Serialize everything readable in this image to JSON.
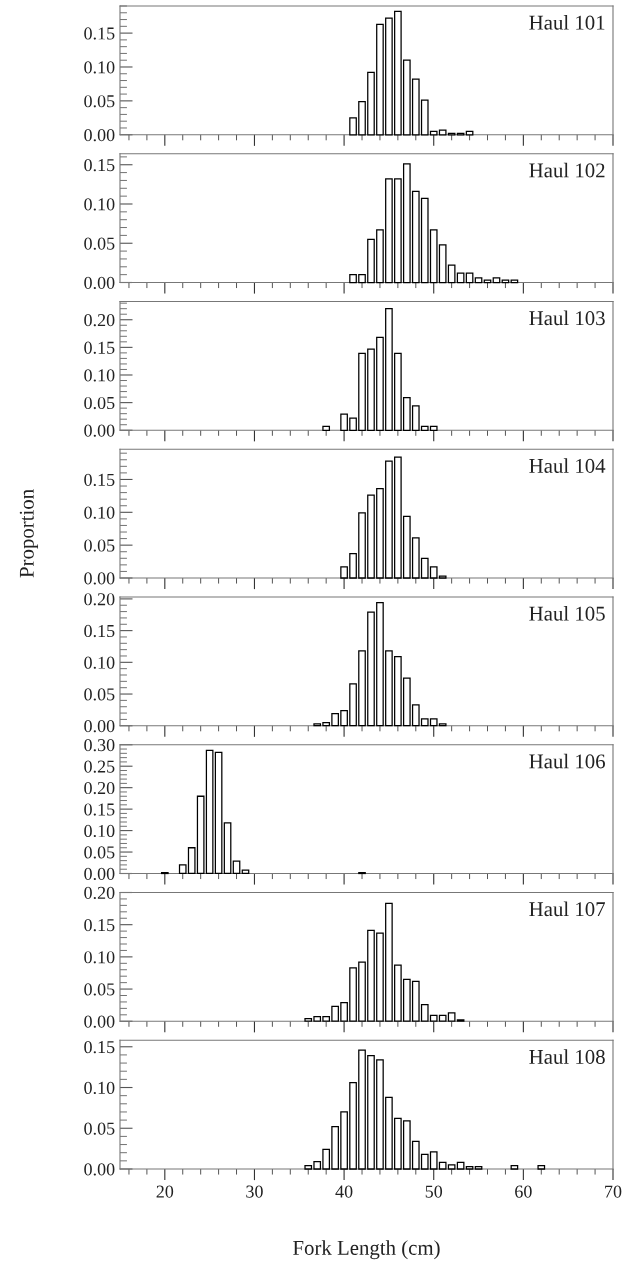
{
  "chart_data": [
    {
      "type": "bar",
      "title": "Haul 101",
      "color": "#ffffff",
      "tick_labels": "y",
      "xlim": [
        15,
        70
      ],
      "xticks": [
        20,
        30,
        40,
        50,
        60,
        70
      ],
      "ylim": [
        0,
        0.19
      ],
      "yticks": [
        {
          "value": 0,
          "label": "0.00"
        },
        {
          "value": 0.05,
          "label": "0.05"
        },
        {
          "value": 0.1,
          "label": "0.10"
        },
        {
          "value": 0.15,
          "label": "0.15"
        }
      ],
      "x": [
        41,
        42,
        43,
        44,
        45,
        46,
        47,
        48,
        49,
        50,
        51,
        52,
        53,
        54
      ],
      "values": [
        0.025,
        0.049,
        0.092,
        0.163,
        0.172,
        0.182,
        0.11,
        0.082,
        0.051,
        0.005,
        0.007,
        0.002,
        0.002,
        0.005
      ]
    },
    {
      "type": "bar",
      "title": "Haul 102",
      "color": "#ffffff",
      "tick_labels": "y",
      "xlim": [
        15,
        70
      ],
      "xticks": [
        20,
        30,
        40,
        50,
        60,
        70
      ],
      "ylim": [
        0,
        0.164
      ],
      "yticks": [
        {
          "value": 0,
          "label": "0.00"
        },
        {
          "value": 0.05,
          "label": "0.05"
        },
        {
          "value": 0.1,
          "label": "0.10"
        },
        {
          "value": 0.15,
          "label": "0.15"
        }
      ],
      "x": [
        41,
        42,
        43,
        44,
        45,
        46,
        47,
        48,
        49,
        50,
        51,
        52,
        53,
        54,
        55,
        56,
        57,
        58,
        59
      ],
      "values": [
        0.01,
        0.01,
        0.055,
        0.067,
        0.132,
        0.132,
        0.151,
        0.116,
        0.107,
        0.067,
        0.048,
        0.022,
        0.012,
        0.012,
        0.006,
        0.003,
        0.006,
        0.003,
        0.003
      ]
    },
    {
      "type": "bar",
      "title": "Haul 103",
      "color": "#ffffff",
      "tick_labels": "y",
      "xlim": [
        15,
        70
      ],
      "xticks": [
        20,
        30,
        40,
        50,
        60,
        70
      ],
      "ylim": [
        0,
        0.233
      ],
      "yticks": [
        {
          "value": 0,
          "label": "0.00"
        },
        {
          "value": 0.05,
          "label": "0.05"
        },
        {
          "value": 0.1,
          "label": "0.10"
        },
        {
          "value": 0.15,
          "label": "0.15"
        },
        {
          "value": 0.2,
          "label": "0.20"
        }
      ],
      "x": [
        38,
        40,
        41,
        42,
        43,
        44,
        45,
        46,
        47,
        48,
        49,
        50
      ],
      "values": [
        0.007,
        0.029,
        0.022,
        0.139,
        0.147,
        0.168,
        0.22,
        0.139,
        0.059,
        0.044,
        0.007,
        0.007
      ]
    },
    {
      "type": "bar",
      "title": "Haul 104",
      "color": "#ffffff",
      "tick_labels": "y",
      "ylabel": "Proportion",
      "xlim": [
        15,
        70
      ],
      "xticks": [
        20,
        30,
        40,
        50,
        60,
        70
      ],
      "ylim": [
        0,
        0.196
      ],
      "yticks": [
        {
          "value": 0,
          "label": "0.00"
        },
        {
          "value": 0.05,
          "label": "0.05"
        },
        {
          "value": 0.1,
          "label": "0.10"
        },
        {
          "value": 0.15,
          "label": "0.15"
        }
      ],
      "x": [
        40,
        41,
        42,
        43,
        44,
        45,
        46,
        47,
        48,
        49,
        50,
        51
      ],
      "values": [
        0.017,
        0.037,
        0.099,
        0.126,
        0.136,
        0.178,
        0.184,
        0.094,
        0.061,
        0.03,
        0.017,
        0.003
      ]
    },
    {
      "type": "bar",
      "title": "Haul 105",
      "color": "#ffffff",
      "tick_labels": "y",
      "xlim": [
        15,
        70
      ],
      "xticks": [
        20,
        30,
        40,
        50,
        60,
        70
      ],
      "ylim": [
        0,
        0.203
      ],
      "yticks": [
        {
          "value": 0,
          "label": "0.00"
        },
        {
          "value": 0.05,
          "label": "0.05"
        },
        {
          "value": 0.1,
          "label": "0.10"
        },
        {
          "value": 0.15,
          "label": "0.15"
        },
        {
          "value": 0.2,
          "label": "0.20"
        }
      ],
      "x": [
        37,
        38,
        39,
        40,
        41,
        42,
        43,
        44,
        45,
        46,
        47,
        48,
        49,
        50,
        51
      ],
      "values": [
        0.003,
        0.005,
        0.019,
        0.024,
        0.066,
        0.118,
        0.179,
        0.194,
        0.118,
        0.109,
        0.075,
        0.033,
        0.011,
        0.011,
        0.003
      ]
    },
    {
      "type": "bar",
      "title": "Haul 106",
      "color": "#ffffff",
      "tick_labels": "y",
      "xlim": [
        15,
        70
      ],
      "xticks": [
        20,
        30,
        40,
        50,
        60,
        70
      ],
      "ylim": [
        0,
        0.3
      ],
      "yticks": [
        {
          "value": 0,
          "label": "0.00"
        },
        {
          "value": 0.05,
          "label": "0.05"
        },
        {
          "value": 0.1,
          "label": "0.10"
        },
        {
          "value": 0.15,
          "label": "0.15"
        },
        {
          "value": 0.2,
          "label": "0.20"
        },
        {
          "value": 0.25,
          "label": "0.25"
        },
        {
          "value": 0.3,
          "label": "0.30"
        }
      ],
      "x": [
        20,
        22,
        23,
        24,
        25,
        26,
        27,
        28,
        29,
        42
      ],
      "values": [
        0.002,
        0.02,
        0.06,
        0.18,
        0.287,
        0.282,
        0.118,
        0.029,
        0.008,
        0.002
      ]
    },
    {
      "type": "bar",
      "title": "Haul 107",
      "color": "#ffffff",
      "tick_labels": "y",
      "xlim": [
        15,
        70
      ],
      "xticks": [
        20,
        30,
        40,
        50,
        60,
        70
      ],
      "ylim": [
        0,
        0.2
      ],
      "yticks": [
        {
          "value": 0,
          "label": "0.00"
        },
        {
          "value": 0.05,
          "label": "0.05"
        },
        {
          "value": 0.1,
          "label": "0.10"
        },
        {
          "value": 0.15,
          "label": "0.15"
        },
        {
          "value": 0.2,
          "label": "0.20"
        }
      ],
      "x": [
        36,
        37,
        38,
        39,
        40,
        41,
        42,
        43,
        44,
        45,
        46,
        47,
        48,
        49,
        50,
        51,
        52,
        53
      ],
      "values": [
        0.004,
        0.007,
        0.007,
        0.023,
        0.029,
        0.083,
        0.092,
        0.141,
        0.137,
        0.183,
        0.087,
        0.065,
        0.062,
        0.026,
        0.009,
        0.009,
        0.013,
        0.002
      ]
    },
    {
      "type": "bar",
      "title": "Haul 108",
      "color": "#ffffff",
      "xlabel": "Fork Length (cm)",
      "xlim": [
        15,
        70
      ],
      "xticks": [
        20,
        30,
        40,
        50,
        60,
        70
      ],
      "ylim": [
        0,
        0.158
      ],
      "yticks": [
        {
          "value": 0,
          "label": "0.00"
        },
        {
          "value": 0.05,
          "label": "0.05"
        },
        {
          "value": 0.1,
          "label": "0.10"
        },
        {
          "value": 0.15,
          "label": "0.15"
        }
      ],
      "x": [
        36,
        37,
        38,
        39,
        40,
        41,
        42,
        43,
        44,
        45,
        46,
        47,
        48,
        49,
        50,
        51,
        52,
        53,
        54,
        55,
        59,
        62
      ],
      "values": [
        0.004,
        0.009,
        0.024,
        0.052,
        0.07,
        0.106,
        0.146,
        0.139,
        0.134,
        0.088,
        0.062,
        0.059,
        0.034,
        0.018,
        0.021,
        0.008,
        0.005,
        0.008,
        0.003,
        0.003,
        0.004,
        0.004
      ]
    }
  ]
}
